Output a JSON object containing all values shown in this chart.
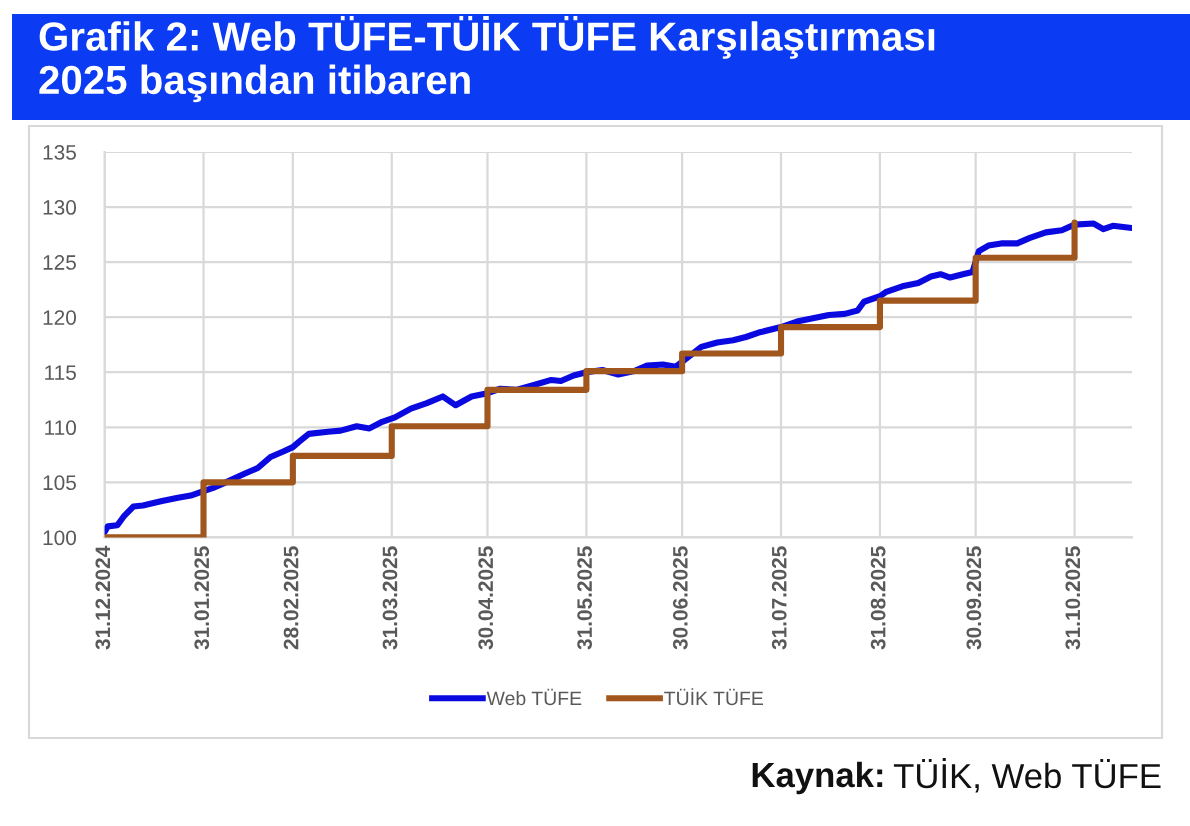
{
  "chart_data": {
    "type": "line",
    "title": "Grafik 2: Web TÜFE-TÜİK TÜFE Karşılaştırması\n2025 başından itibaren",
    "series": [
      {
        "name": "Web TÜFE",
        "color": "#0a0ae0",
        "x": [
          "2024-12-31",
          "2025-01-01",
          "2025-01-04",
          "2025-01-06",
          "2025-01-09",
          "2025-01-12",
          "2025-01-18",
          "2025-01-23",
          "2025-01-27",
          "2025-01-31",
          "2025-02-03",
          "2025-02-07",
          "2025-02-13",
          "2025-02-17",
          "2025-02-21",
          "2025-02-25",
          "2025-02-28",
          "2025-03-02",
          "2025-03-05",
          "2025-03-11",
          "2025-03-15",
          "2025-03-20",
          "2025-03-24",
          "2025-03-28",
          "2025-04-01",
          "2025-04-06",
          "2025-04-11",
          "2025-04-16",
          "2025-04-20",
          "2025-04-25",
          "2025-04-30",
          "2025-05-04",
          "2025-05-09",
          "2025-05-14",
          "2025-05-20",
          "2025-05-23",
          "2025-05-27",
          "2025-05-31",
          "2025-06-05",
          "2025-06-10",
          "2025-06-15",
          "2025-06-19",
          "2025-06-24",
          "2025-06-28",
          "2025-07-02",
          "2025-07-06",
          "2025-07-11",
          "2025-07-16",
          "2025-07-20",
          "2025-07-24",
          "2025-07-31",
          "2025-08-05",
          "2025-08-10",
          "2025-08-15",
          "2025-08-20",
          "2025-08-24",
          "2025-08-26",
          "2025-08-31",
          "2025-09-02",
          "2025-09-07",
          "2025-09-12",
          "2025-09-16",
          "2025-09-19",
          "2025-09-22",
          "2025-09-26",
          "2025-09-29",
          "2025-10-01",
          "2025-10-04",
          "2025-10-08",
          "2025-10-13",
          "2025-10-17",
          "2025-10-22",
          "2025-10-27",
          "2025-10-31",
          "2025-11-06",
          "2025-11-09",
          "2025-11-12",
          "2025-11-18"
        ],
        "values": [
          100.5,
          101.0,
          101.1,
          101.9,
          102.8,
          102.9,
          103.3,
          103.6,
          103.8,
          104.2,
          104.5,
          105.0,
          105.8,
          106.3,
          107.3,
          107.8,
          108.2,
          108.7,
          109.4,
          109.6,
          109.7,
          110.1,
          109.9,
          110.5,
          110.9,
          111.7,
          112.2,
          112.8,
          112.0,
          112.8,
          113.1,
          113.5,
          113.4,
          113.8,
          114.3,
          114.2,
          114.7,
          115.0,
          115.2,
          114.8,
          115.1,
          115.6,
          115.7,
          115.5,
          116.4,
          117.3,
          117.7,
          117.9,
          118.2,
          118.6,
          119.1,
          119.6,
          119.9,
          120.2,
          120.3,
          120.6,
          121.4,
          121.9,
          122.3,
          122.8,
          123.1,
          123.7,
          123.9,
          123.6,
          123.9,
          124.1,
          126.0,
          126.5,
          126.7,
          126.7,
          127.2,
          127.7,
          127.9,
          128.4,
          128.5,
          128.0,
          128.3,
          128.1
        ]
      },
      {
        "name": "TÜİK TÜFE",
        "type": "step",
        "color": "#a0561c",
        "x": [
          "2024-12-31",
          "2025-01-31",
          "2025-02-28",
          "2025-03-31",
          "2025-04-30",
          "2025-05-31",
          "2025-06-30",
          "2025-07-31",
          "2025-08-31",
          "2025-09-30",
          "2025-10-31"
        ],
        "values": [
          100.0,
          105.0,
          107.4,
          110.1,
          113.4,
          115.1,
          116.7,
          119.1,
          121.5,
          125.4,
          128.6
        ]
      }
    ],
    "xlim": [
      "2024-12-31",
      "2025-11-18"
    ],
    "ylim": [
      100,
      135
    ],
    "xticks": [
      {
        "value": "2024-12-31",
        "label": "31.12.2024"
      },
      {
        "value": "2025-01-31",
        "label": "31.01.2025"
      },
      {
        "value": "2025-02-28",
        "label": "28.02.2025"
      },
      {
        "value": "2025-03-31",
        "label": "31.03.2025"
      },
      {
        "value": "2025-04-30",
        "label": "30.04.2025"
      },
      {
        "value": "2025-05-31",
        "label": "31.05.2025"
      },
      {
        "value": "2025-06-30",
        "label": "30.06.2025"
      },
      {
        "value": "2025-07-31",
        "label": "31.07.2025"
      },
      {
        "value": "2025-08-31",
        "label": "31.08.2025"
      },
      {
        "value": "2025-09-30",
        "label": "30.09.2025"
      },
      {
        "value": "2025-10-31",
        "label": "31.10.2025"
      }
    ],
    "yticks": [
      100,
      105,
      110,
      115,
      120,
      125,
      130,
      135
    ],
    "grid": true,
    "legend": "bottom",
    "annotations": [
      "Kaynak:",
      "TÜİK, Web TÜFE"
    ]
  }
}
